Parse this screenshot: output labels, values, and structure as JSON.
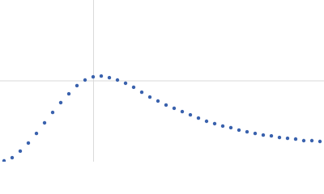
{
  "chart_data": {
    "type": "scatter",
    "x": [
      0.075,
      0.225,
      0.375,
      0.525,
      0.675,
      0.825,
      0.975,
      1.125,
      1.275,
      1.425,
      1.575,
      1.725,
      1.875,
      2.025,
      2.175,
      2.325,
      2.475,
      2.625,
      2.775,
      2.925,
      3.075,
      3.225,
      3.375,
      3.525,
      3.675,
      3.825,
      3.975,
      4.125,
      4.275,
      4.425,
      4.575,
      4.725,
      4.875,
      5.025,
      5.175,
      5.325,
      5.475,
      5.625,
      5.775,
      5.925
    ],
    "values": [
      0.011,
      0.055,
      0.144,
      0.254,
      0.386,
      0.53,
      0.673,
      0.806,
      0.927,
      1.038,
      1.115,
      1.159,
      1.17,
      1.148,
      1.115,
      1.071,
      1.016,
      0.949,
      0.883,
      0.828,
      0.773,
      0.729,
      0.684,
      0.64,
      0.596,
      0.552,
      0.519,
      0.486,
      0.464,
      0.431,
      0.408,
      0.386,
      0.364,
      0.353,
      0.331,
      0.32,
      0.309,
      0.287,
      0.287,
      0.276
    ],
    "color": "#3a62ad",
    "xlim": [
      0,
      6
    ],
    "ylim": [
      0,
      2.208
    ],
    "xgrid": [
      1.732
    ],
    "ygrid": [
      1.104
    ]
  }
}
